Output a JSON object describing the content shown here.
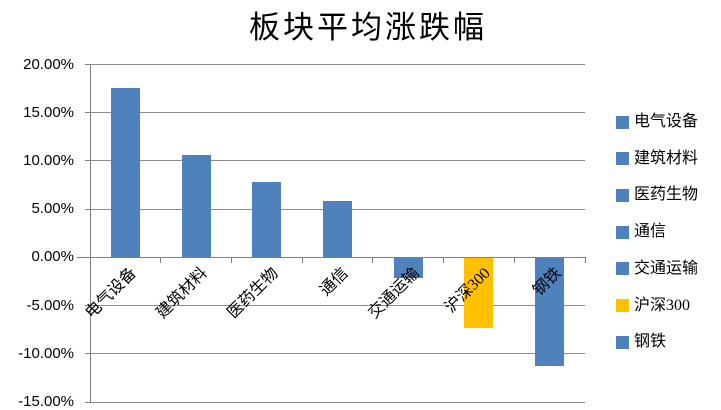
{
  "chart_data": {
    "type": "bar",
    "title": "板块平均涨跌幅",
    "categories": [
      "电气设备",
      "建筑材料",
      "医药生物",
      "通信",
      "交通运输",
      "沪深300",
      "钢铁"
    ],
    "values": [
      17.6,
      10.6,
      7.8,
      5.8,
      -2.1,
      -7.3,
      -11.3
    ],
    "value_unit": "%",
    "xlabel": "",
    "ylabel": "",
    "ylim": [
      -15,
      20
    ],
    "ytick_step": 5,
    "ytick_labels": [
      "20.00%",
      "15.00%",
      "10.00%",
      "5.00%",
      "0.00%",
      "-5.00%",
      "-10.00%",
      "-15.00%"
    ],
    "bar_colors": [
      "#4F81BD",
      "#4F81BD",
      "#4F81BD",
      "#4F81BD",
      "#4F81BD",
      "#FFC000",
      "#4F81BD"
    ],
    "grid": true,
    "legend": {
      "position": "right",
      "items": [
        {
          "label": "电气设备",
          "color": "#4F81BD"
        },
        {
          "label": "建筑材料",
          "color": "#4F81BD"
        },
        {
          "label": "医药生物",
          "color": "#4F81BD"
        },
        {
          "label": "通信",
          "color": "#4F81BD"
        },
        {
          "label": "交通运输",
          "color": "#4F81BD"
        },
        {
          "label": "沪深300",
          "color": "#FFC000"
        },
        {
          "label": "钢铁",
          "color": "#4F81BD"
        }
      ]
    },
    "style_colors": {
      "gridline": "#8B8B8B",
      "axis": "#7F7F7F",
      "text": "#000000",
      "background": "#FFFFFF"
    }
  }
}
